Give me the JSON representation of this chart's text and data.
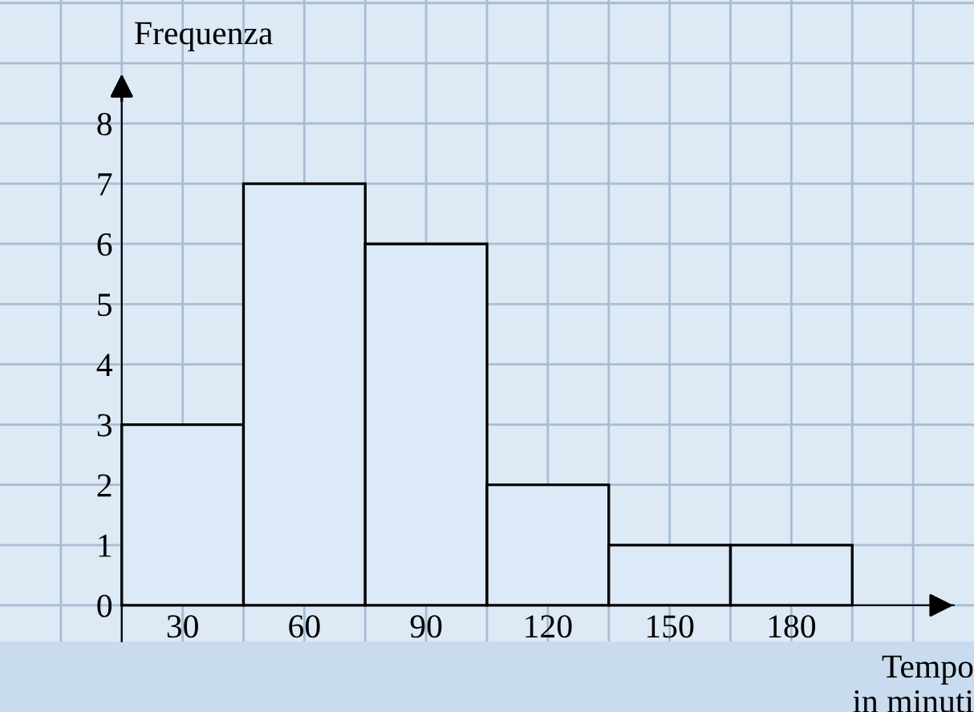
{
  "chart_data": {
    "type": "histogram",
    "xlabel": "Tempo\nin minuti",
    "ylabel": "Frequenza",
    "bins": [
      15,
      45,
      75,
      105,
      135,
      165,
      195
    ],
    "values": [
      3,
      7,
      6,
      2,
      1,
      1
    ],
    "color": "#dce9f6",
    "xlim": [
      -15,
      225
    ],
    "ylim": [
      -0.6,
      10.05
    ],
    "xticks": [
      {
        "value": 0,
        "label": null
      },
      {
        "value": 15,
        "label": null
      },
      30,
      {
        "value": 45,
        "label": null
      },
      60,
      {
        "value": 75,
        "label": null
      },
      90,
      {
        "value": 105,
        "label": null
      },
      120,
      {
        "value": 135,
        "label": null
      },
      150,
      {
        "value": 165,
        "label": null
      },
      180,
      {
        "value": 195,
        "label": null
      },
      {
        "value": 210,
        "label": null
      }
    ],
    "yticks": [
      0,
      1,
      2,
      3,
      4,
      5,
      6,
      7,
      8,
      {
        "value": 9,
        "label": null
      },
      {
        "value": 10,
        "label": null
      }
    ],
    "grid": true
  }
}
